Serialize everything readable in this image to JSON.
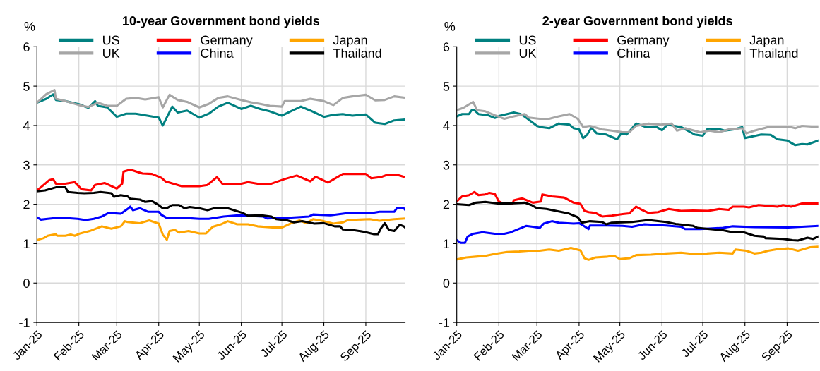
{
  "chart_data": [
    {
      "type": "line",
      "title": "10-year Government bond yields",
      "ylabel": "%",
      "legend": "top",
      "grid": true,
      "line_style": "solid",
      "xlim": [
        "2025-01-01",
        "2025-09-30"
      ],
      "ylim": [
        -1,
        6
      ],
      "yticks": [
        -1,
        0,
        1,
        2,
        3,
        4,
        5,
        6
      ],
      "xticks": [
        {
          "value": "2025-01-01",
          "label": "Jan-25"
        },
        {
          "value": "2025-02-01",
          "label": "Feb-25"
        },
        {
          "value": "2025-03-01",
          "label": "Mar-25"
        },
        {
          "value": "2025-04-01",
          "label": "Apr-25"
        },
        {
          "value": "2025-05-01",
          "label": "May-25"
        },
        {
          "value": "2025-06-01",
          "label": "Jun-25"
        },
        {
          "value": "2025-07-01",
          "label": "Jul-25"
        },
        {
          "value": "2025-08-01",
          "label": "Aug-25"
        },
        {
          "value": "2025-09-01",
          "label": "Sep-25"
        }
      ],
      "series": [
        {
          "name": "US",
          "color": "#008080",
          "x": [
            "2025-01-01",
            "2025-01-08",
            "2025-01-13",
            "2025-01-15",
            "2025-01-22",
            "2025-02-01",
            "2025-02-08",
            "2025-02-13",
            "2025-02-15",
            "2025-02-22",
            "2025-03-01",
            "2025-03-08",
            "2025-03-15",
            "2025-03-22",
            "2025-04-01",
            "2025-04-04",
            "2025-04-11",
            "2025-04-15",
            "2025-04-22",
            "2025-05-01",
            "2025-05-08",
            "2025-05-15",
            "2025-05-22",
            "2025-06-01",
            "2025-06-08",
            "2025-06-15",
            "2025-06-22",
            "2025-07-01",
            "2025-07-08",
            "2025-07-15",
            "2025-07-22",
            "2025-08-01",
            "2025-08-08",
            "2025-08-15",
            "2025-08-22",
            "2025-09-01",
            "2025-09-08",
            "2025-09-15",
            "2025-09-22",
            "2025-09-29"
          ],
          "values": [
            4.58,
            4.68,
            4.79,
            4.65,
            4.62,
            4.54,
            4.45,
            4.62,
            4.5,
            4.46,
            4.22,
            4.3,
            4.3,
            4.26,
            4.2,
            4.0,
            4.48,
            4.33,
            4.38,
            4.2,
            4.3,
            4.48,
            4.58,
            4.42,
            4.5,
            4.42,
            4.36,
            4.25,
            4.37,
            4.48,
            4.38,
            4.22,
            4.27,
            4.29,
            4.25,
            4.28,
            4.07,
            4.04,
            4.13,
            4.15
          ]
        },
        {
          "name": "UK",
          "color": "#a6a6a6",
          "x": [
            "2025-01-01",
            "2025-01-08",
            "2025-01-14",
            "2025-01-15",
            "2025-01-22",
            "2025-02-01",
            "2025-02-08",
            "2025-02-15",
            "2025-02-22",
            "2025-03-01",
            "2025-03-08",
            "2025-03-15",
            "2025-03-22",
            "2025-04-01",
            "2025-04-04",
            "2025-04-09",
            "2025-04-15",
            "2025-04-22",
            "2025-05-01",
            "2025-05-08",
            "2025-05-15",
            "2025-05-22",
            "2025-06-01",
            "2025-06-08",
            "2025-06-15",
            "2025-06-22",
            "2025-07-01",
            "2025-07-03",
            "2025-07-15",
            "2025-07-22",
            "2025-08-01",
            "2025-08-08",
            "2025-08-15",
            "2025-08-22",
            "2025-09-01",
            "2025-09-08",
            "2025-09-15",
            "2025-09-22",
            "2025-09-29"
          ],
          "values": [
            4.58,
            4.8,
            4.9,
            4.68,
            4.62,
            4.52,
            4.47,
            4.58,
            4.5,
            4.5,
            4.68,
            4.7,
            4.66,
            4.72,
            4.46,
            4.78,
            4.65,
            4.6,
            4.46,
            4.55,
            4.7,
            4.74,
            4.65,
            4.59,
            4.55,
            4.5,
            4.48,
            4.62,
            4.62,
            4.68,
            4.62,
            4.52,
            4.7,
            4.74,
            4.78,
            4.64,
            4.65,
            4.74,
            4.71
          ]
        },
        {
          "name": "Germany",
          "color": "#ff0000",
          "x": [
            "2025-01-01",
            "2025-01-05",
            "2025-01-10",
            "2025-01-13",
            "2025-01-15",
            "2025-01-22",
            "2025-01-29",
            "2025-02-03",
            "2025-02-10",
            "2025-02-13",
            "2025-02-20",
            "2025-03-01",
            "2025-03-05",
            "2025-03-06",
            "2025-03-11",
            "2025-03-20",
            "2025-03-27",
            "2025-04-03",
            "2025-04-06",
            "2025-04-18",
            "2025-05-01",
            "2025-05-07",
            "2025-05-14",
            "2025-05-18",
            "2025-06-01",
            "2025-06-06",
            "2025-06-13",
            "2025-06-23",
            "2025-07-03",
            "2025-07-12",
            "2025-07-22",
            "2025-07-26",
            "2025-08-04",
            "2025-08-15",
            "2025-09-01",
            "2025-09-05",
            "2025-09-12",
            "2025-09-17",
            "2025-09-24",
            "2025-09-29"
          ],
          "values": [
            2.35,
            2.46,
            2.61,
            2.64,
            2.52,
            2.52,
            2.56,
            2.38,
            2.35,
            2.49,
            2.54,
            2.4,
            2.52,
            2.83,
            2.88,
            2.78,
            2.77,
            2.67,
            2.58,
            2.46,
            2.46,
            2.49,
            2.69,
            2.52,
            2.52,
            2.56,
            2.52,
            2.52,
            2.64,
            2.73,
            2.58,
            2.7,
            2.55,
            2.77,
            2.77,
            2.66,
            2.69,
            2.75,
            2.75,
            2.7
          ]
        },
        {
          "name": "China",
          "color": "#0000ff",
          "x": [
            "2025-01-01",
            "2025-01-04",
            "2025-01-09",
            "2025-01-18",
            "2025-01-31",
            "2025-02-06",
            "2025-02-12",
            "2025-02-18",
            "2025-02-23",
            "2025-03-04",
            "2025-03-09",
            "2025-03-11",
            "2025-03-13",
            "2025-03-18",
            "2025-03-24",
            "2025-04-01",
            "2025-04-03",
            "2025-04-07",
            "2025-04-22",
            "2025-05-01",
            "2025-05-08",
            "2025-05-19",
            "2025-05-30",
            "2025-06-17",
            "2025-06-20",
            "2025-07-08",
            "2025-07-21",
            "2025-07-24",
            "2025-08-06",
            "2025-08-17",
            "2025-09-04",
            "2025-09-11",
            "2025-09-22",
            "2025-09-24",
            "2025-09-29",
            "2025-09-30"
          ],
          "values": [
            1.67,
            1.61,
            1.63,
            1.66,
            1.63,
            1.6,
            1.63,
            1.69,
            1.78,
            1.76,
            1.88,
            1.94,
            1.85,
            1.9,
            1.81,
            1.81,
            1.73,
            1.65,
            1.65,
            1.63,
            1.63,
            1.69,
            1.72,
            1.69,
            1.64,
            1.66,
            1.69,
            1.74,
            1.72,
            1.77,
            1.77,
            1.81,
            1.81,
            1.9,
            1.9,
            1.86
          ]
        },
        {
          "name": "Japan",
          "color": "#ffa500",
          "x": [
            "2025-01-01",
            "2025-01-06",
            "2025-01-09",
            "2025-01-15",
            "2025-01-16",
            "2025-01-22",
            "2025-01-26",
            "2025-01-29",
            "2025-02-02",
            "2025-02-09",
            "2025-02-18",
            "2025-02-25",
            "2025-03-04",
            "2025-03-07",
            "2025-03-09",
            "2025-03-18",
            "2025-03-25",
            "2025-04-01",
            "2025-04-04",
            "2025-04-07",
            "2025-04-09",
            "2025-04-13",
            "2025-04-16",
            "2025-04-23",
            "2025-05-01",
            "2025-05-06",
            "2025-05-11",
            "2025-05-17",
            "2025-05-22",
            "2025-05-29",
            "2025-06-06",
            "2025-06-13",
            "2025-06-24",
            "2025-07-01",
            "2025-07-08",
            "2025-07-14",
            "2025-07-19",
            "2025-07-24",
            "2025-08-01",
            "2025-08-08",
            "2025-08-15",
            "2025-08-19",
            "2025-09-04",
            "2025-09-11",
            "2025-09-22",
            "2025-09-30"
          ],
          "values": [
            1.09,
            1.14,
            1.2,
            1.24,
            1.2,
            1.2,
            1.23,
            1.2,
            1.26,
            1.32,
            1.44,
            1.38,
            1.44,
            1.57,
            1.55,
            1.52,
            1.59,
            1.51,
            1.23,
            1.1,
            1.32,
            1.35,
            1.28,
            1.32,
            1.26,
            1.26,
            1.43,
            1.49,
            1.57,
            1.49,
            1.49,
            1.44,
            1.41,
            1.41,
            1.52,
            1.59,
            1.52,
            1.62,
            1.57,
            1.51,
            1.54,
            1.6,
            1.62,
            1.58,
            1.62,
            1.64
          ]
        },
        {
          "name": "Thailand",
          "color": "#000000",
          "x": [
            "2025-01-01",
            "2025-01-07",
            "2025-01-15",
            "2025-01-22",
            "2025-01-24",
            "2025-01-31",
            "2025-02-05",
            "2025-02-12",
            "2025-02-17",
            "2025-02-25",
            "2025-02-27",
            "2025-03-04",
            "2025-03-09",
            "2025-03-11",
            "2025-03-18",
            "2025-03-22",
            "2025-03-27",
            "2025-03-31",
            "2025-04-04",
            "2025-04-07",
            "2025-04-11",
            "2025-04-16",
            "2025-04-20",
            "2025-04-24",
            "2025-05-01",
            "2025-05-07",
            "2025-05-13",
            "2025-05-22",
            "2025-06-02",
            "2025-06-06",
            "2025-06-16",
            "2025-06-23",
            "2025-06-27",
            "2025-07-05",
            "2025-07-10",
            "2025-07-16",
            "2025-07-25",
            "2025-08-01",
            "2025-08-09",
            "2025-08-13",
            "2025-08-15",
            "2025-08-22",
            "2025-08-31",
            "2025-09-07",
            "2025-09-10",
            "2025-09-12",
            "2025-09-15",
            "2025-09-18",
            "2025-09-22",
            "2025-09-26",
            "2025-09-29",
            "2025-09-30"
          ],
          "values": [
            2.33,
            2.35,
            2.43,
            2.43,
            2.31,
            2.29,
            2.28,
            2.29,
            2.31,
            2.28,
            2.19,
            2.23,
            2.2,
            2.14,
            2.12,
            2.06,
            2.08,
            2.0,
            1.9,
            1.9,
            1.98,
            1.98,
            1.9,
            1.93,
            1.9,
            1.85,
            1.91,
            1.9,
            1.78,
            1.71,
            1.72,
            1.69,
            1.62,
            1.59,
            1.54,
            1.57,
            1.51,
            1.52,
            1.44,
            1.44,
            1.36,
            1.35,
            1.3,
            1.24,
            1.24,
            1.38,
            1.52,
            1.35,
            1.32,
            1.48,
            1.44,
            1.41
          ]
        }
      ]
    },
    {
      "type": "line",
      "title": "2-year Government bond yields",
      "ylabel": "%",
      "legend": "top",
      "grid": true,
      "line_style": "solid",
      "xlim": [
        "2025-01-01",
        "2025-09-24"
      ],
      "ylim": [
        -1,
        6
      ],
      "yticks": [
        -1,
        0,
        1,
        2,
        3,
        4,
        5,
        6
      ],
      "xticks": [
        {
          "value": "2025-01-01",
          "label": "Jan-25"
        },
        {
          "value": "2025-02-01",
          "label": "Feb-25"
        },
        {
          "value": "2025-03-01",
          "label": "Mar-25"
        },
        {
          "value": "2025-04-01",
          "label": "Apr-25"
        },
        {
          "value": "2025-05-01",
          "label": "May-25"
        },
        {
          "value": "2025-06-01",
          "label": "Jun-25"
        },
        {
          "value": "2025-07-01",
          "label": "Jul-25"
        },
        {
          "value": "2025-08-01",
          "label": "Aug-25"
        },
        {
          "value": "2025-09-01",
          "label": "Sep-25"
        }
      ],
      "series": [
        {
          "name": "US",
          "color": "#008080",
          "x": [
            "2025-01-01",
            "2025-01-05",
            "2025-01-10",
            "2025-01-12",
            "2025-01-14",
            "2025-01-17",
            "2025-01-24",
            "2025-01-29",
            "2025-02-02",
            "2025-02-07",
            "2025-02-12",
            "2025-02-17",
            "2025-02-21",
            "2025-03-01",
            "2025-03-04",
            "2025-03-10",
            "2025-03-17",
            "2025-03-25",
            "2025-03-28",
            "2025-04-01",
            "2025-04-04",
            "2025-04-07",
            "2025-04-10",
            "2025-04-14",
            "2025-04-21",
            "2025-04-29",
            "2025-05-02",
            "2025-05-06",
            "2025-05-13",
            "2025-05-20",
            "2025-05-28",
            "2025-06-01",
            "2025-06-05",
            "2025-06-15",
            "2025-06-25",
            "2025-07-01",
            "2025-07-04",
            "2025-07-13",
            "2025-07-17",
            "2025-07-24",
            "2025-07-30",
            "2025-08-01",
            "2025-08-13",
            "2025-08-20",
            "2025-08-25",
            "2025-09-01",
            "2025-09-07",
            "2025-09-12",
            "2025-09-16",
            "2025-09-24"
          ],
          "values": [
            4.23,
            4.29,
            4.29,
            4.39,
            4.39,
            4.29,
            4.26,
            4.19,
            4.25,
            4.29,
            4.33,
            4.29,
            4.2,
            3.99,
            3.96,
            3.93,
            4.05,
            4.02,
            3.93,
            3.9,
            3.68,
            3.77,
            3.94,
            3.8,
            3.77,
            3.65,
            3.8,
            3.77,
            4.05,
            3.96,
            3.96,
            3.88,
            4.02,
            3.96,
            3.77,
            3.74,
            3.9,
            3.91,
            3.87,
            3.9,
            3.96,
            3.68,
            3.77,
            3.76,
            3.65,
            3.62,
            3.5,
            3.53,
            3.52,
            3.62
          ]
        },
        {
          "name": "UK",
          "color": "#a6a6a6",
          "x": [
            "2025-01-01",
            "2025-01-06",
            "2025-01-13",
            "2025-01-16",
            "2025-01-22",
            "2025-01-29",
            "2025-02-05",
            "2025-02-12",
            "2025-02-20",
            "2025-02-23",
            "2025-03-03",
            "2025-03-10",
            "2025-03-17",
            "2025-03-25",
            "2025-03-31",
            "2025-04-04",
            "2025-04-09",
            "2025-04-18",
            "2025-04-25",
            "2025-05-03",
            "2025-05-08",
            "2025-05-13",
            "2025-05-22",
            "2025-05-31",
            "2025-06-08",
            "2025-06-12",
            "2025-06-18",
            "2025-06-29",
            "2025-07-06",
            "2025-07-13",
            "2025-07-20",
            "2025-07-30",
            "2025-08-02",
            "2025-08-08",
            "2025-08-18",
            "2025-08-25",
            "2025-09-02",
            "2025-09-07",
            "2025-09-12",
            "2025-09-24"
          ],
          "values": [
            4.39,
            4.45,
            4.6,
            4.39,
            4.36,
            4.26,
            4.17,
            4.23,
            4.29,
            4.2,
            4.17,
            4.17,
            4.23,
            4.29,
            4.17,
            3.96,
            3.99,
            3.9,
            3.87,
            3.83,
            3.83,
            3.99,
            4.05,
            4.02,
            4.05,
            3.87,
            3.93,
            3.83,
            3.87,
            3.83,
            3.9,
            3.93,
            3.8,
            3.87,
            3.96,
            3.96,
            3.97,
            3.93,
            3.99,
            3.96
          ]
        },
        {
          "name": "Germany",
          "color": "#ff0000",
          "x": [
            "2025-01-01",
            "2025-01-05",
            "2025-01-10",
            "2025-01-14",
            "2025-01-17",
            "2025-01-22",
            "2025-01-25",
            "2025-01-29",
            "2025-02-01",
            "2025-02-04",
            "2025-02-11",
            "2025-02-12",
            "2025-02-18",
            "2025-02-26",
            "2025-03-04",
            "2025-03-05",
            "2025-03-12",
            "2025-03-21",
            "2025-03-28",
            "2025-04-02",
            "2025-04-05",
            "2025-04-08",
            "2025-04-13",
            "2025-04-18",
            "2025-04-25",
            "2025-05-03",
            "2025-05-08",
            "2025-05-13",
            "2025-05-17",
            "2025-05-22",
            "2025-05-29",
            "2025-06-06",
            "2025-06-15",
            "2025-06-24",
            "2025-07-05",
            "2025-07-13",
            "2025-07-20",
            "2025-07-23",
            "2025-07-31",
            "2025-08-04",
            "2025-08-11",
            "2025-08-25",
            "2025-08-29",
            "2025-09-04",
            "2025-09-12",
            "2025-09-24"
          ],
          "values": [
            2.07,
            2.2,
            2.23,
            2.31,
            2.23,
            2.25,
            2.29,
            2.26,
            2.07,
            2.02,
            2.01,
            2.1,
            2.15,
            2.04,
            2.07,
            2.25,
            2.2,
            2.17,
            2.04,
            2.01,
            1.83,
            1.8,
            1.78,
            1.69,
            1.71,
            1.75,
            1.77,
            1.94,
            1.86,
            1.78,
            1.8,
            1.88,
            1.83,
            1.84,
            1.83,
            1.88,
            1.86,
            1.94,
            1.94,
            1.92,
            1.98,
            1.94,
            1.98,
            1.94,
            2.02,
            2.02
          ]
        },
        {
          "name": "China",
          "color": "#0000ff",
          "x": [
            "2025-01-01",
            "2025-01-04",
            "2025-01-07",
            "2025-01-09",
            "2025-01-13",
            "2025-01-20",
            "2025-01-29",
            "2025-02-05",
            "2025-02-09",
            "2025-02-14",
            "2025-02-21",
            "2025-02-26",
            "2025-03-03",
            "2025-03-06",
            "2025-03-12",
            "2025-03-17",
            "2025-03-28",
            "2025-04-01",
            "2025-04-04",
            "2025-04-08",
            "2025-04-09",
            "2025-04-22",
            "2025-05-03",
            "2025-05-10",
            "2025-05-19",
            "2025-06-04",
            "2025-06-15",
            "2025-06-18",
            "2025-06-29",
            "2025-07-16",
            "2025-07-23",
            "2025-08-08",
            "2025-09-02",
            "2025-09-24"
          ],
          "values": [
            1.09,
            1.02,
            1.02,
            1.18,
            1.25,
            1.29,
            1.25,
            1.25,
            1.28,
            1.35,
            1.45,
            1.43,
            1.4,
            1.51,
            1.57,
            1.53,
            1.51,
            1.52,
            1.46,
            1.37,
            1.46,
            1.46,
            1.45,
            1.43,
            1.49,
            1.46,
            1.43,
            1.37,
            1.37,
            1.4,
            1.44,
            1.42,
            1.41,
            1.45
          ]
        },
        {
          "name": "Japan",
          "color": "#ffa500",
          "x": [
            "2025-01-01",
            "2025-01-08",
            "2025-01-15",
            "2025-01-22",
            "2025-01-29",
            "2025-02-07",
            "2025-02-16",
            "2025-02-23",
            "2025-03-03",
            "2025-03-10",
            "2025-03-17",
            "2025-03-26",
            "2025-04-02",
            "2025-04-05",
            "2025-04-08",
            "2025-04-13",
            "2025-04-22",
            "2025-04-27",
            "2025-05-01",
            "2025-05-08",
            "2025-05-13",
            "2025-05-24",
            "2025-06-04",
            "2025-06-15",
            "2025-06-24",
            "2025-07-04",
            "2025-07-13",
            "2025-07-23",
            "2025-07-25",
            "2025-08-02",
            "2025-08-08",
            "2025-08-13",
            "2025-08-18",
            "2025-08-25",
            "2025-09-02",
            "2025-09-09",
            "2025-09-18",
            "2025-09-24"
          ],
          "values": [
            0.6,
            0.65,
            0.67,
            0.69,
            0.74,
            0.79,
            0.8,
            0.82,
            0.82,
            0.85,
            0.82,
            0.89,
            0.83,
            0.63,
            0.59,
            0.65,
            0.67,
            0.69,
            0.61,
            0.63,
            0.71,
            0.72,
            0.75,
            0.77,
            0.74,
            0.75,
            0.77,
            0.75,
            0.85,
            0.82,
            0.75,
            0.77,
            0.82,
            0.86,
            0.88,
            0.82,
            0.91,
            0.92
          ]
        },
        {
          "name": "Thailand",
          "color": "#000000",
          "x": [
            "2025-01-01",
            "2025-01-10",
            "2025-01-15",
            "2025-01-22",
            "2025-01-31",
            "2025-02-09",
            "2025-02-20",
            "2025-02-25",
            "2025-03-01",
            "2025-03-08",
            "2025-03-15",
            "2025-03-24",
            "2025-03-31",
            "2025-04-03",
            "2025-04-09",
            "2025-04-18",
            "2025-04-21",
            "2025-04-25",
            "2025-05-10",
            "2025-05-22",
            "2025-06-04",
            "2025-06-11",
            "2025-06-24",
            "2025-06-27",
            "2025-07-06",
            "2025-07-16",
            "2025-07-23",
            "2025-07-31",
            "2025-08-08",
            "2025-08-15",
            "2025-08-16",
            "2025-08-29",
            "2025-09-05",
            "2025-09-09",
            "2025-09-16",
            "2025-09-20",
            "2025-09-24"
          ],
          "values": [
            2.0,
            1.98,
            2.04,
            2.06,
            2.02,
            2.02,
            2.04,
            1.98,
            1.9,
            1.88,
            1.83,
            1.77,
            1.67,
            1.53,
            1.57,
            1.55,
            1.49,
            1.53,
            1.55,
            1.6,
            1.55,
            1.5,
            1.45,
            1.4,
            1.37,
            1.34,
            1.29,
            1.29,
            1.2,
            1.18,
            1.14,
            1.12,
            1.09,
            1.08,
            1.15,
            1.12,
            1.18
          ]
        }
      ]
    }
  ]
}
